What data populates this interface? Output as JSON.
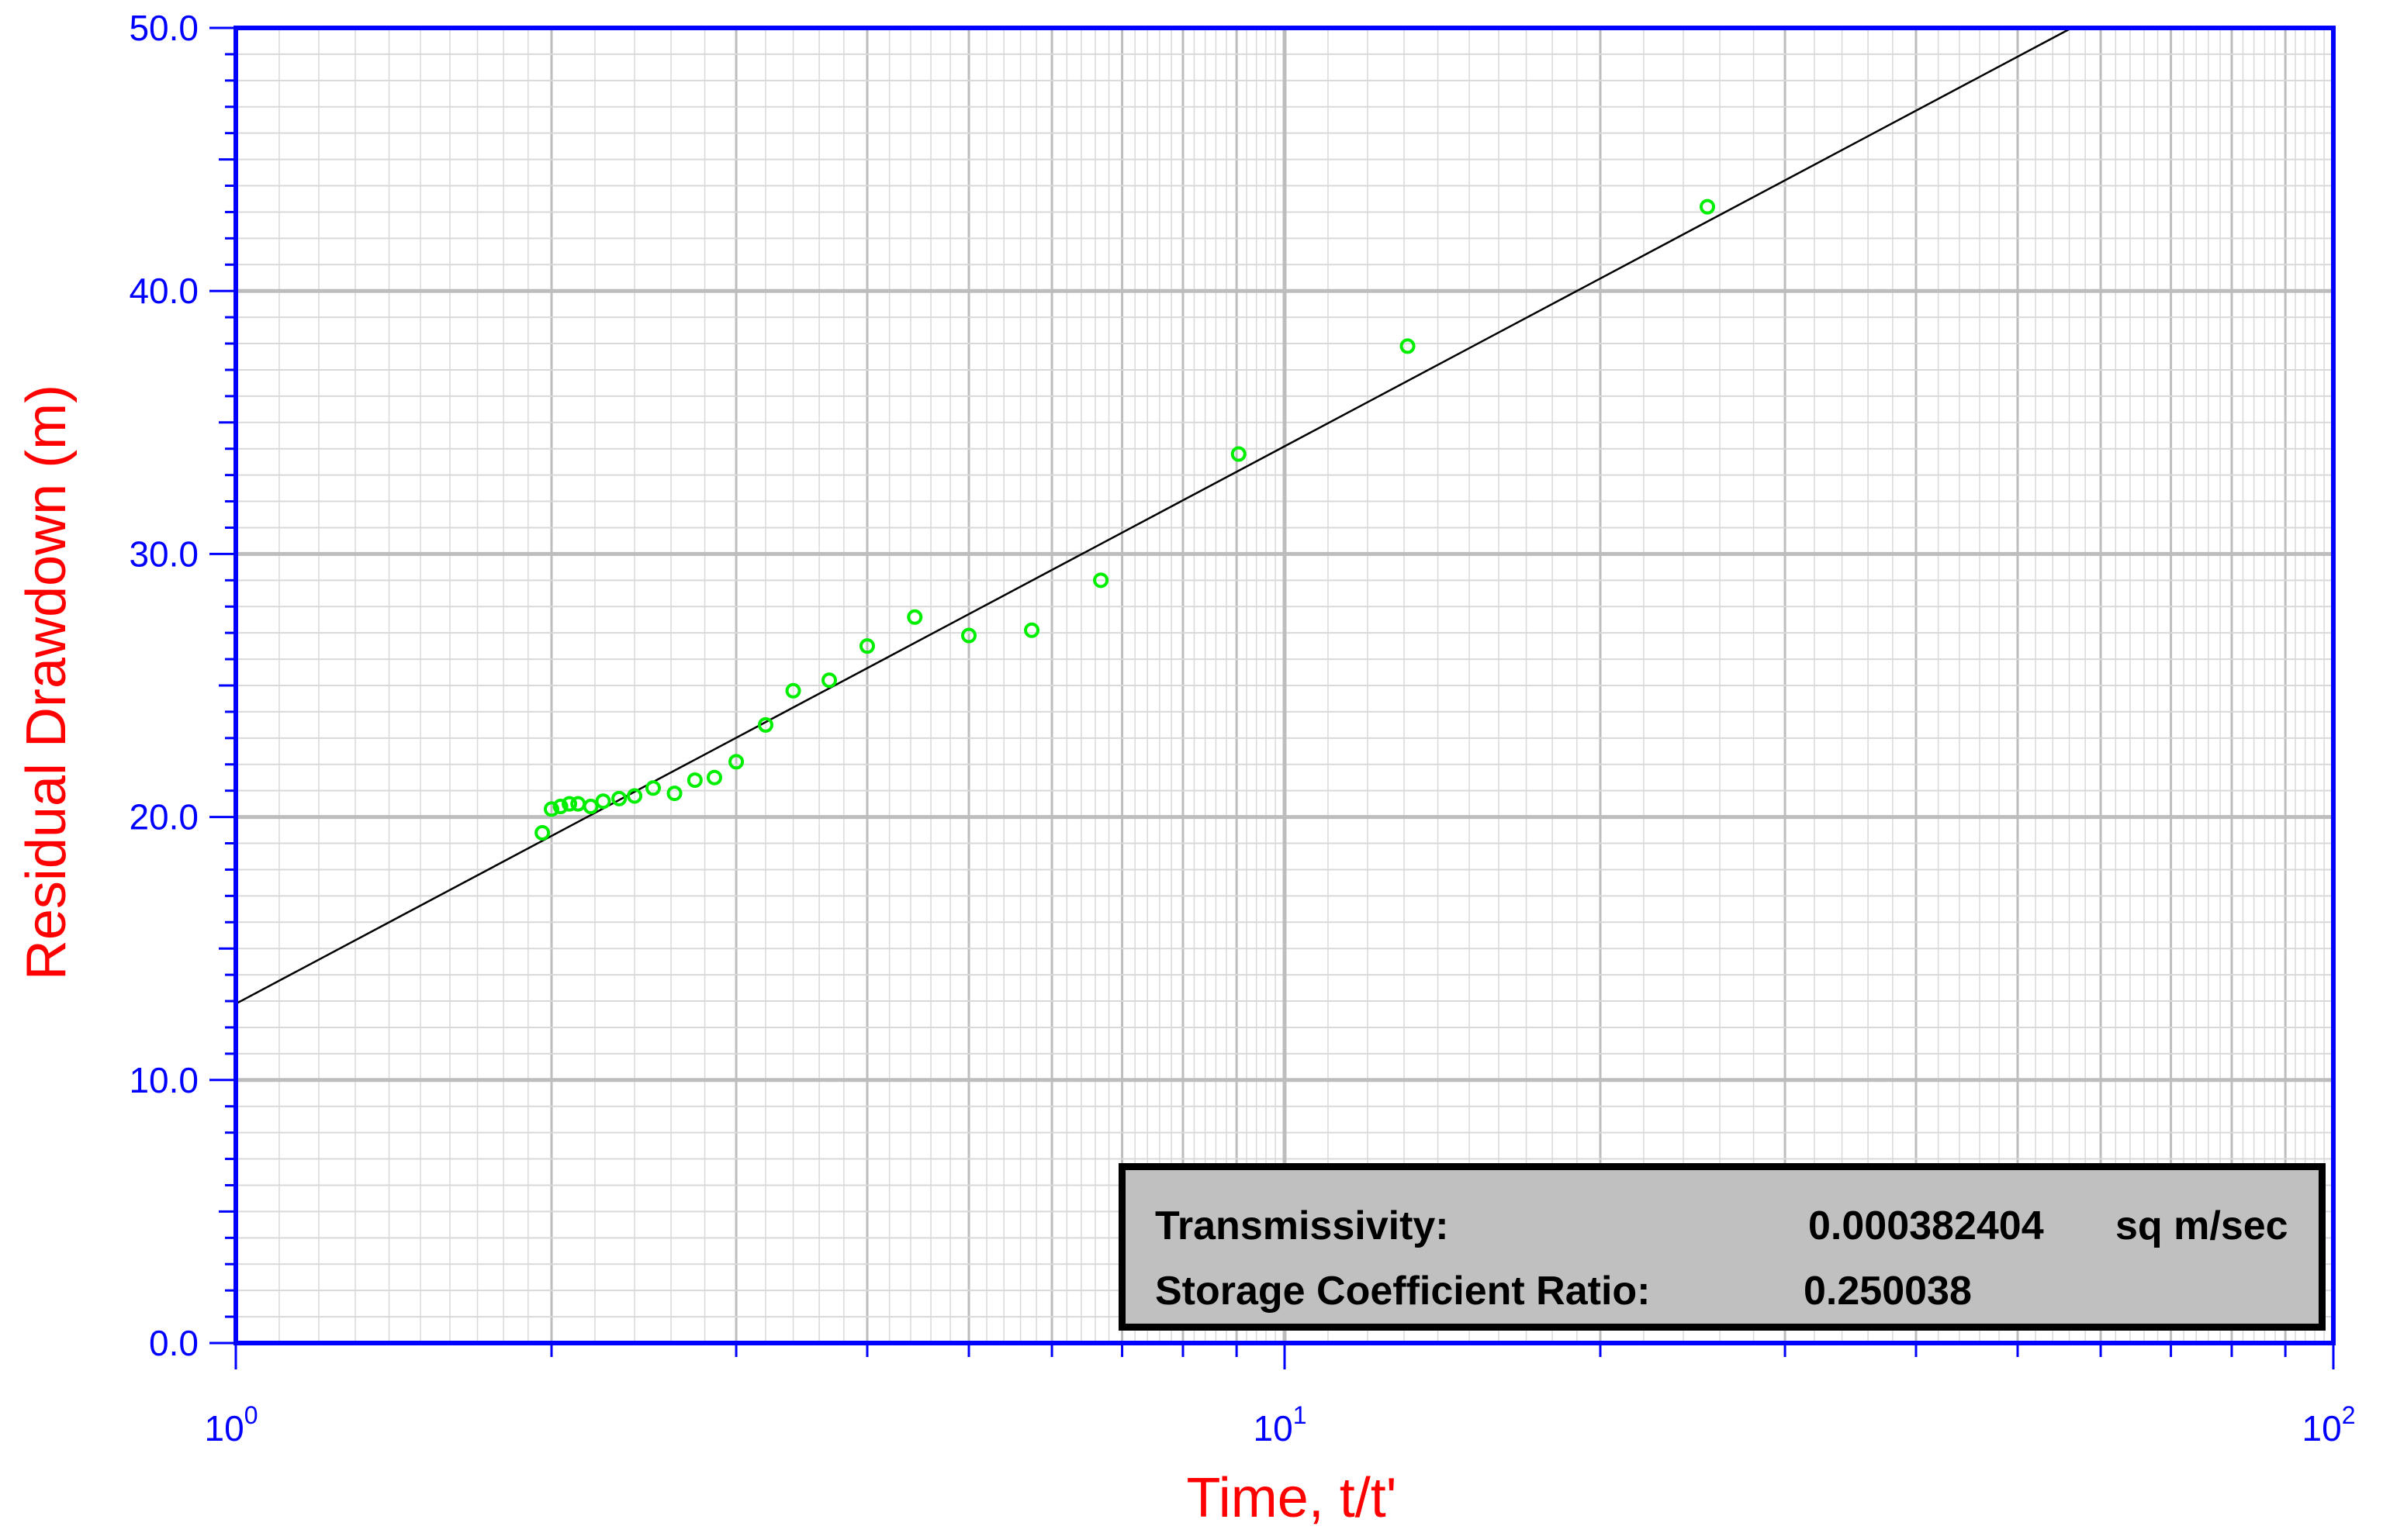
{
  "chart_data": {
    "type": "scatter",
    "xlabel": "Time, t/t'",
    "ylabel": "Residual Drawdown (m)",
    "xscale": "log",
    "xlim": [
      1,
      100
    ],
    "ylim": [
      0,
      50
    ],
    "x_ticks": [
      {
        "value": 1,
        "base": "10",
        "exp": "0"
      },
      {
        "value": 10,
        "base": "10",
        "exp": "1"
      },
      {
        "value": 100,
        "base": "10",
        "exp": "2"
      }
    ],
    "y_ticks": [
      "0.0",
      "10.0",
      "20.0",
      "30.0",
      "40.0",
      "50.0"
    ],
    "grid": true,
    "series": [
      {
        "marker": "open-circle",
        "color": "#00ee00",
        "points": [
          [
            1.96,
            19.4
          ],
          [
            2.0,
            20.3
          ],
          [
            2.04,
            20.4
          ],
          [
            2.08,
            20.5
          ],
          [
            2.12,
            20.5
          ],
          [
            2.18,
            20.4
          ],
          [
            2.24,
            20.6
          ],
          [
            2.32,
            20.7
          ],
          [
            2.4,
            20.8
          ],
          [
            2.5,
            21.1
          ],
          [
            2.62,
            20.9
          ],
          [
            2.74,
            21.4
          ],
          [
            2.86,
            21.5
          ],
          [
            3.0,
            22.1
          ],
          [
            3.2,
            23.5
          ],
          [
            3.4,
            24.8
          ],
          [
            3.68,
            25.2
          ],
          [
            4.0,
            26.5
          ],
          [
            4.44,
            27.6
          ],
          [
            5.0,
            26.9
          ],
          [
            5.74,
            27.1
          ],
          [
            6.68,
            29.0
          ],
          [
            9.04,
            33.8
          ],
          [
            13.1,
            37.9
          ],
          [
            25.3,
            43.2
          ]
        ]
      }
    ],
    "fit_line": {
      "color": "#000000",
      "points": [
        [
          1,
          12.9
        ],
        [
          56.3,
          50.0
        ]
      ]
    }
  },
  "results": {
    "transmissivity_label": "Transmissivity:",
    "transmissivity_value": "0.000382404",
    "transmissivity_unit": "sq m/sec",
    "storage_label": "Storage Coefficient Ratio:",
    "storage_value": "0.250038"
  },
  "colors": {
    "axis": "#0000ff",
    "label": "#ff0000",
    "grid_major": "#bdbdbd",
    "grid_minor": "#d9d9d9",
    "data": "#00ee00",
    "fit": "#000000",
    "box": "#c0c0c0"
  }
}
